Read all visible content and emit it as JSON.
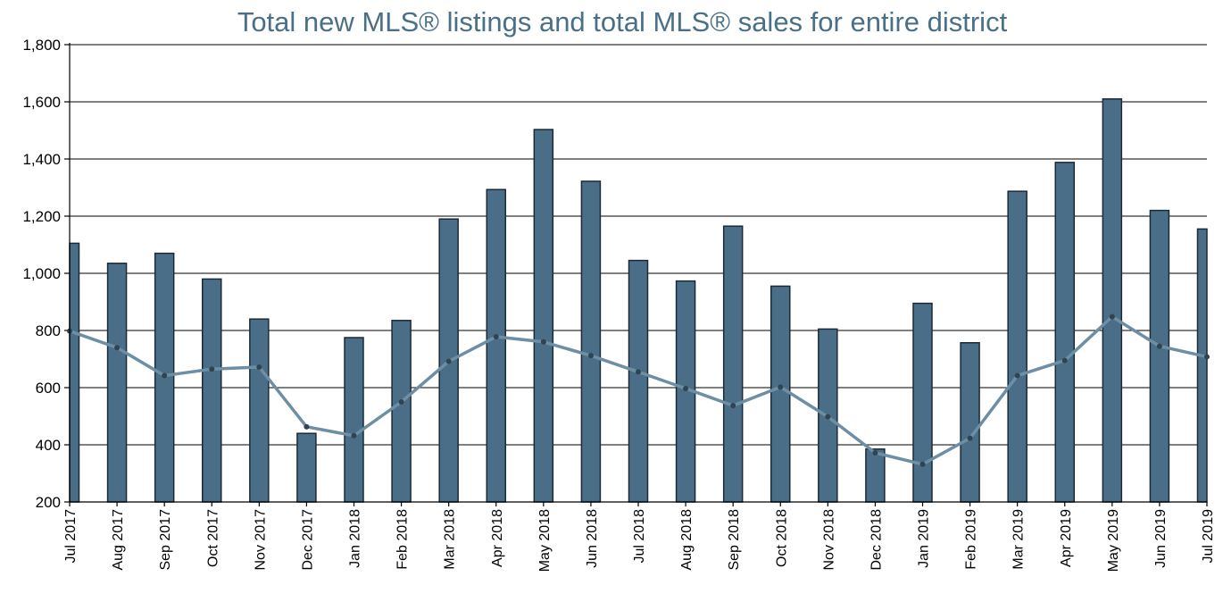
{
  "chart_data": {
    "type": "bar",
    "title": "Total new MLS® listings and total MLS® sales for entire district",
    "xlabel": "",
    "ylabel": "",
    "ylim": [
      200,
      1800
    ],
    "yticks": [
      "200",
      "400",
      "600",
      "800",
      "1,000",
      "1,200",
      "1,400",
      "1,600",
      "1,800"
    ],
    "ytick_values": [
      200,
      400,
      600,
      800,
      1000,
      1200,
      1400,
      1600,
      1800
    ],
    "grid": true,
    "categories": [
      "Jul 2017",
      "Aug 2017",
      "Sep 2017",
      "Oct 2017",
      "Nov 2017",
      "Dec 2017",
      "Jan 2018",
      "Feb 2018",
      "Mar 2018",
      "Apr 2018",
      "May 2018",
      "Jun 2018",
      "Jul 2018",
      "Aug 2018",
      "Sep 2018",
      "Oct 2018",
      "Nov 2018",
      "Dec 2018",
      "Jan 2019",
      "Feb 2019",
      "Mar 2019",
      "Apr 2019",
      "May 2019",
      "Jun 2019",
      "Jul 2019"
    ],
    "series": [
      {
        "name": "Total new MLS® listings",
        "kind": "bar",
        "color": "#4a6e88",
        "values": [
          1105,
          1035,
          1070,
          980,
          840,
          440,
          775,
          835,
          1190,
          1293,
          1503,
          1322,
          1045,
          973,
          1165,
          955,
          805,
          385,
          895,
          757,
          1287,
          1388,
          1610,
          1220,
          1155
        ]
      },
      {
        "name": "Total MLS® sales",
        "kind": "line",
        "color": "#6d8ea3",
        "values": [
          798,
          740,
          642,
          665,
          672,
          463,
          432,
          550,
          692,
          778,
          760,
          712,
          655,
          597,
          537,
          602,
          498,
          372,
          332,
          423,
          642,
          695,
          848,
          745,
          708
        ]
      }
    ]
  }
}
